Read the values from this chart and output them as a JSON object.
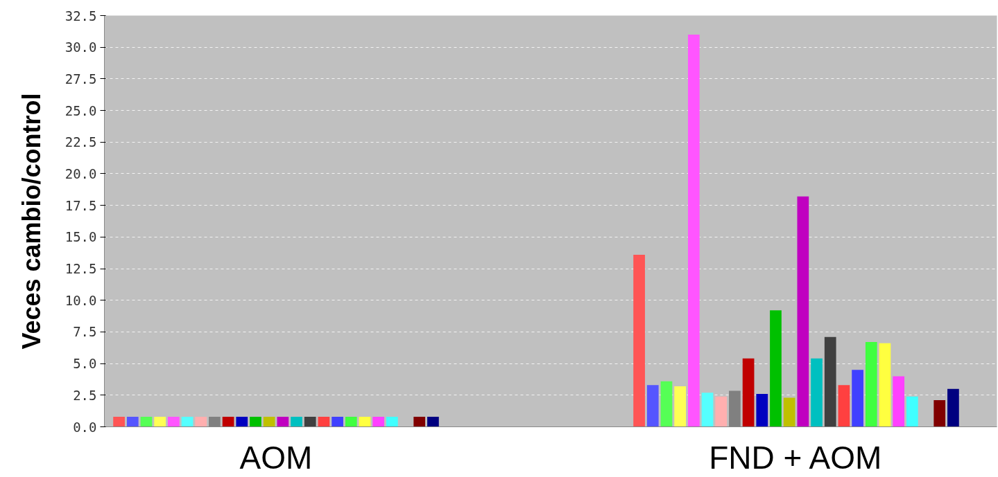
{
  "chart_data": {
    "type": "bar",
    "ylabel": "Veces cambio/control",
    "categories": [
      "AOM",
      "FND + AOM"
    ],
    "ylim": [
      0,
      32.5
    ],
    "yticks": [
      {
        "value": 0,
        "label": "0.0"
      },
      {
        "value": 2.5,
        "label": "2.5"
      },
      {
        "value": 5,
        "label": "5.0"
      },
      {
        "value": 7.5,
        "label": "7.5"
      },
      {
        "value": 10,
        "label": "10.0"
      },
      {
        "value": 12.5,
        "label": "12.5"
      },
      {
        "value": 15,
        "label": "15.0"
      },
      {
        "value": 17.5,
        "label": "17.5"
      },
      {
        "value": 20,
        "label": "20.0"
      },
      {
        "value": 22.5,
        "label": "22.5"
      },
      {
        "value": 25,
        "label": "25.0"
      },
      {
        "value": 27.5,
        "label": "27.5"
      },
      {
        "value": 30,
        "label": "30.0"
      },
      {
        "value": 32.5,
        "label": "32.5"
      }
    ],
    "grid": "y",
    "series": [
      {
        "color": "#ff5555",
        "values": [
          0.8,
          13.6
        ]
      },
      {
        "color": "#5555ff",
        "values": [
          0.8,
          3.3
        ]
      },
      {
        "color": "#55ff55",
        "values": [
          0.8,
          3.6
        ]
      },
      {
        "color": "#ffff55",
        "values": [
          0.8,
          3.2
        ]
      },
      {
        "color": "#ff55ff",
        "values": [
          0.8,
          31.0
        ]
      },
      {
        "color": "#55ffff",
        "values": [
          0.8,
          2.7
        ]
      },
      {
        "color": "#ffafaf",
        "values": [
          0.8,
          2.4
        ]
      },
      {
        "color": "#808080",
        "values": [
          0.8,
          2.85
        ]
      },
      {
        "color": "#c00000",
        "values": [
          0.8,
          5.4
        ]
      },
      {
        "color": "#0000c0",
        "values": [
          0.8,
          2.6
        ]
      },
      {
        "color": "#00c000",
        "values": [
          0.8,
          9.2
        ]
      },
      {
        "color": "#c0c000",
        "values": [
          0.8,
          2.3
        ]
      },
      {
        "color": "#c000c0",
        "values": [
          0.8,
          18.2
        ]
      },
      {
        "color": "#00c0c0",
        "values": [
          0.8,
          5.4
        ]
      },
      {
        "color": "#404040",
        "values": [
          0.8,
          7.1
        ]
      },
      {
        "color": "#ff4040",
        "values": [
          0.8,
          3.3
        ]
      },
      {
        "color": "#4040ff",
        "values": [
          0.8,
          4.5
        ]
      },
      {
        "color": "#40ff40",
        "values": [
          0.8,
          6.7
        ]
      },
      {
        "color": "#ffff40",
        "values": [
          0.8,
          6.6
        ]
      },
      {
        "color": "#ff40ff",
        "values": [
          0.8,
          4.0
        ]
      },
      {
        "color": "#40ffff",
        "values": [
          0.8,
          2.4
        ]
      },
      {
        "values": [
          null,
          null
        ]
      },
      {
        "color": "#800000",
        "values": [
          0.8,
          2.1
        ]
      },
      {
        "color": "#000080",
        "values": [
          0.8,
          3.0
        ]
      }
    ]
  }
}
